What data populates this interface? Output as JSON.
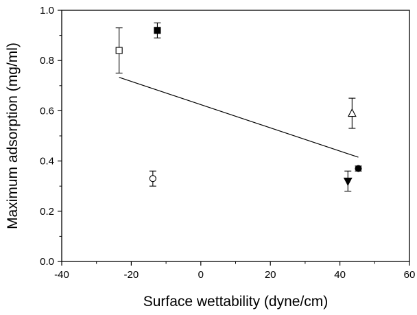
{
  "chart_data": {
    "type": "scatter",
    "title": "",
    "xlabel": "Surface wettability (dyne/cm)",
    "ylabel": "Maximum adsorption (mg/ml)",
    "xlim": [
      -40,
      60
    ],
    "ylim": [
      0.0,
      1.0
    ],
    "x_ticks": [
      "-40",
      "-20",
      "0",
      "20",
      "40",
      "60"
    ],
    "y_ticks": [
      "0.0",
      "0.2",
      "0.4",
      "0.6",
      "0.8",
      "1.0"
    ],
    "grid": false,
    "legend": "none",
    "points": [
      {
        "marker": "open-square",
        "x": -23.5,
        "y": 0.84,
        "err_low": 0.09,
        "err_high": 0.09
      },
      {
        "marker": "filled-square",
        "x": -12.5,
        "y": 0.92,
        "err_low": 0.03,
        "err_high": 0.03
      },
      {
        "marker": "open-circle",
        "x": -13.8,
        "y": 0.33,
        "err_low": 0.03,
        "err_high": 0.03
      },
      {
        "marker": "open-triangle",
        "x": 43.5,
        "y": 0.59,
        "err_low": 0.06,
        "err_high": 0.06
      },
      {
        "marker": "filled-triangle-down",
        "x": 42.3,
        "y": 0.32,
        "err_low": 0.04,
        "err_high": 0.04
      },
      {
        "marker": "filled-circle",
        "x": 45.3,
        "y": 0.37,
        "err_low": 0.01,
        "err_high": 0.01
      }
    ],
    "fit_line": {
      "x": [
        -23.5,
        45.3
      ],
      "y": [
        0.733,
        0.415
      ]
    }
  }
}
